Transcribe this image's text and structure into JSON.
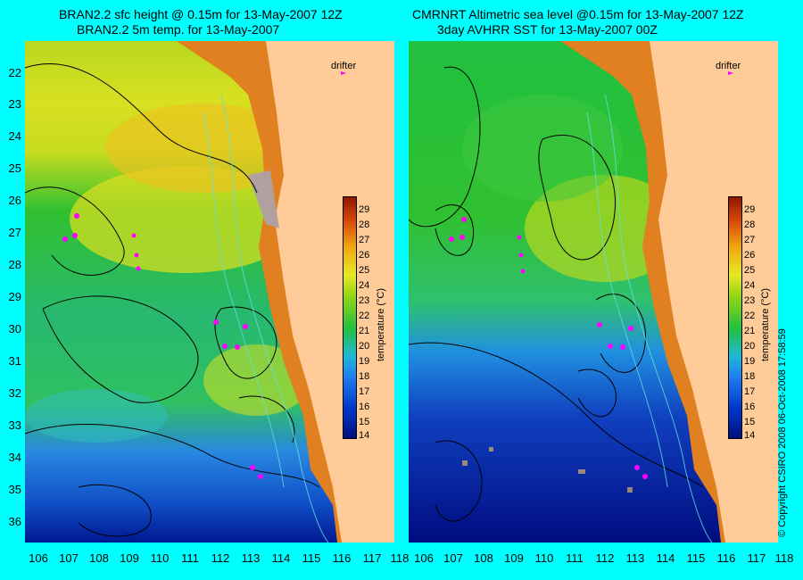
{
  "left_panel": {
    "title_line1": "BRAN2.2 sfc height @ 0.15m for 13-May-2007 12Z",
    "title_line2": "BRAN2.2 5m temp. for 13-May-2007"
  },
  "right_panel": {
    "title_line1": "CMRNRT Altimetric sea level  @0.15m  for 13-May-2007 12Z",
    "title_line2": "3day AVHRR SST for 13-May-2007 00Z"
  },
  "lat_labels": [
    "22",
    "23",
    "24",
    "25",
    "26",
    "27",
    "28",
    "29",
    "30",
    "31",
    "32",
    "33",
    "34",
    "35",
    "36"
  ],
  "lon_labels": [
    "106",
    "107",
    "108",
    "109",
    "110",
    "111",
    "112",
    "113",
    "114",
    "115",
    "116",
    "117",
    "118"
  ],
  "drifter_label": "drifter",
  "colorbar": {
    "labels": [
      "29",
      "28",
      "27",
      "26",
      "25",
      "24",
      "23",
      "22",
      "21",
      "20",
      "19",
      "18",
      "17",
      "16",
      "15",
      "14"
    ],
    "title": "temperature (°C)"
  },
  "copyright": "© Copyright CSIRO 2008     06-Oct-2008 17:58:59",
  "colors": {
    "background": "#00ffff",
    "land": "#ffcc99",
    "drifter": "#ff00ff"
  }
}
